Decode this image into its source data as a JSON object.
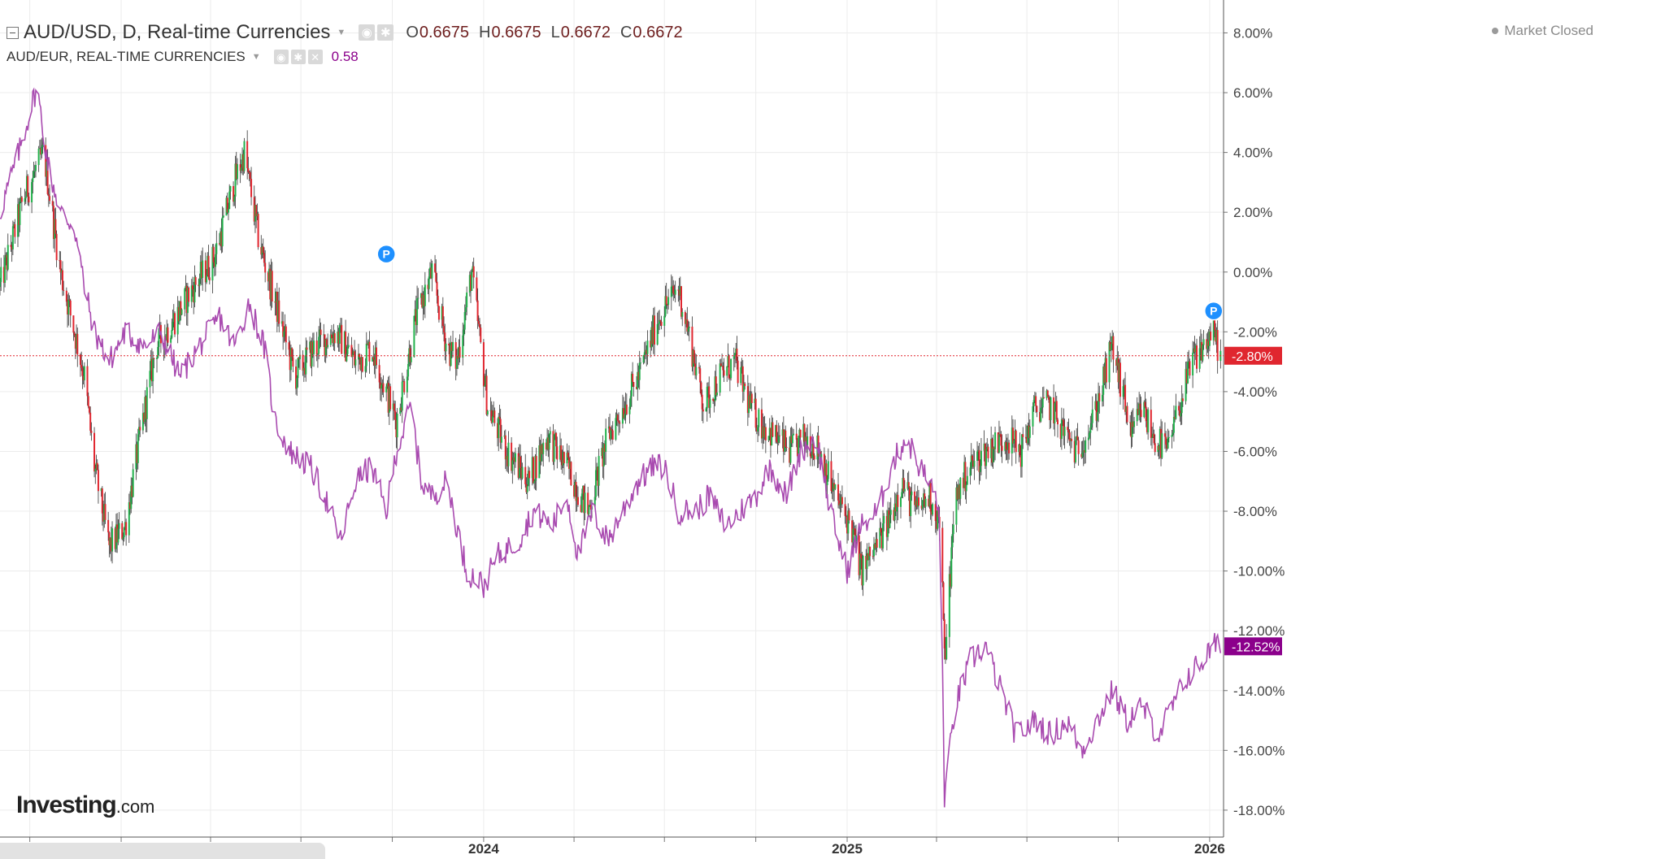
{
  "chart_data": {
    "type": "line",
    "title": "AUD/USD, D, Real-time Currencies",
    "x_ticks": [
      "2024",
      "2025",
      "2026"
    ],
    "x_range": [
      "2022-09-01",
      "2026-01-15"
    ],
    "y_range": [
      -18.9,
      9.1
    ],
    "y_ticks": [
      "8.00%",
      "6.00%",
      "4.00%",
      "2.00%",
      "0.00%",
      "-2.00%",
      "-4.00%",
      "-6.00%",
      "-8.00%",
      "-10.00%",
      "-12.00%",
      "-14.00%",
      "-16.00%",
      "-18.00%"
    ],
    "y_unit": "%",
    "grid": true,
    "series": [
      {
        "name": "AUD/USD, D, Real-time Currencies",
        "style": "candlestick",
        "color_up": "#22b14c",
        "color_down": "#e0262f",
        "last_value_label": "-2.80%",
        "label_color": "#e0262f",
        "points": [
          {
            "x": "2022-09-01",
            "y": -0.5
          },
          {
            "x": "2022-09-25",
            "y": 2.5
          },
          {
            "x": "2022-10-15",
            "y": 4.0
          },
          {
            "x": "2022-11-01",
            "y": 0.0
          },
          {
            "x": "2022-11-15",
            "y": -2.0
          },
          {
            "x": "2022-11-25",
            "y": -3.5
          },
          {
            "x": "2022-12-05",
            "y": -6.5
          },
          {
            "x": "2022-12-20",
            "y": -9.2
          },
          {
            "x": "2023-01-05",
            "y": -8.5
          },
          {
            "x": "2023-01-20",
            "y": -5.5
          },
          {
            "x": "2023-02-05",
            "y": -2.5
          },
          {
            "x": "2023-02-25",
            "y": -1.5
          },
          {
            "x": "2023-03-15",
            "y": -0.5
          },
          {
            "x": "2023-04-05",
            "y": 0.5
          },
          {
            "x": "2023-04-25",
            "y": 3.0
          },
          {
            "x": "2023-05-05",
            "y": 4.0
          },
          {
            "x": "2023-05-20",
            "y": 1.0
          },
          {
            "x": "2023-06-05",
            "y": -1.0
          },
          {
            "x": "2023-06-25",
            "y": -3.5
          },
          {
            "x": "2023-07-15",
            "y": -2.5
          },
          {
            "x": "2023-08-05",
            "y": -2.0
          },
          {
            "x": "2023-08-25",
            "y": -3.0
          },
          {
            "x": "2023-09-10",
            "y": -2.5
          },
          {
            "x": "2023-10-05",
            "y": -5.0
          },
          {
            "x": "2023-10-25",
            "y": -1.5
          },
          {
            "x": "2023-11-10",
            "y": 0.0
          },
          {
            "x": "2023-11-25",
            "y": -2.5
          },
          {
            "x": "2023-12-05",
            "y": -3.0
          },
          {
            "x": "2023-12-20",
            "y": 0.0
          },
          {
            "x": "2024-01-05",
            "y": -4.5
          },
          {
            "x": "2024-01-25",
            "y": -6.0
          },
          {
            "x": "2024-02-15",
            "y": -7.0
          },
          {
            "x": "2024-03-05",
            "y": -5.5
          },
          {
            "x": "2024-03-25",
            "y": -6.5
          },
          {
            "x": "2024-04-15",
            "y": -8.0
          },
          {
            "x": "2024-05-05",
            "y": -5.5
          },
          {
            "x": "2024-06-05",
            "y": -3.5
          },
          {
            "x": "2024-06-25",
            "y": -1.5
          },
          {
            "x": "2024-07-15",
            "y": -0.5
          },
          {
            "x": "2024-07-25",
            "y": -2.0
          },
          {
            "x": "2024-08-10",
            "y": -4.5
          },
          {
            "x": "2024-08-25",
            "y": -3.5
          },
          {
            "x": "2024-09-10",
            "y": -3.0
          },
          {
            "x": "2024-09-25",
            "y": -4.5
          },
          {
            "x": "2024-10-05",
            "y": -5.0
          },
          {
            "x": "2024-10-20",
            "y": -5.5
          },
          {
            "x": "2024-11-05",
            "y": -6.0
          },
          {
            "x": "2024-11-20",
            "y": -5.5
          },
          {
            "x": "2024-12-05",
            "y": -6.0
          },
          {
            "x": "2024-12-20",
            "y": -7.5
          },
          {
            "x": "2025-01-05",
            "y": -8.5
          },
          {
            "x": "2025-01-15",
            "y": -10.0
          },
          {
            "x": "2025-01-25",
            "y": -9.5
          },
          {
            "x": "2025-02-10",
            "y": -8.5
          },
          {
            "x": "2025-02-25",
            "y": -7.0
          },
          {
            "x": "2025-03-10",
            "y": -8.0
          },
          {
            "x": "2025-03-25",
            "y": -7.5
          },
          {
            "x": "2025-04-05",
            "y": -8.5
          },
          {
            "x": "2025-04-09",
            "y": -13.0
          },
          {
            "x": "2025-04-20",
            "y": -7.5
          },
          {
            "x": "2025-05-05",
            "y": -6.5
          },
          {
            "x": "2025-05-20",
            "y": -6.0
          },
          {
            "x": "2025-06-10",
            "y": -5.5
          },
          {
            "x": "2025-06-25",
            "y": -6.0
          },
          {
            "x": "2025-07-10",
            "y": -4.5
          },
          {
            "x": "2025-07-25",
            "y": -4.5
          },
          {
            "x": "2025-08-10",
            "y": -5.5
          },
          {
            "x": "2025-08-20",
            "y": -6.0
          },
          {
            "x": "2025-09-05",
            "y": -5.0
          },
          {
            "x": "2025-09-15",
            "y": -3.8
          },
          {
            "x": "2025-09-25",
            "y": -2.5
          },
          {
            "x": "2025-10-05",
            "y": -4.0
          },
          {
            "x": "2025-10-15",
            "y": -5.5
          },
          {
            "x": "2025-10-25",
            "y": -4.5
          },
          {
            "x": "2025-11-05",
            "y": -5.5
          },
          {
            "x": "2025-11-20",
            "y": -6.0
          },
          {
            "x": "2025-12-01",
            "y": -4.5
          },
          {
            "x": "2025-12-15",
            "y": -3.0
          },
          {
            "x": "2025-12-25",
            "y": -2.5
          },
          {
            "x": "2026-01-05",
            "y": -2.0
          },
          {
            "x": "2026-01-12",
            "y": -2.8
          }
        ]
      },
      {
        "name": "AUD/EUR, REAL-TIME CURRENCIES",
        "style": "line",
        "color": "#a94bb0",
        "last_value_label": "-12.52%",
        "label_color": "#8b008b",
        "points": [
          {
            "x": "2022-09-01",
            "y": 2.0
          },
          {
            "x": "2022-09-20",
            "y": 4.0
          },
          {
            "x": "2022-10-08",
            "y": 6.2
          },
          {
            "x": "2022-10-20",
            "y": 3.5
          },
          {
            "x": "2022-11-01",
            "y": 2.0
          },
          {
            "x": "2022-11-15",
            "y": 1.5
          },
          {
            "x": "2022-11-25",
            "y": -0.5
          },
          {
            "x": "2022-12-05",
            "y": -2.0
          },
          {
            "x": "2022-12-20",
            "y": -3.0
          },
          {
            "x": "2023-01-05",
            "y": -2.0
          },
          {
            "x": "2023-01-25",
            "y": -2.5
          },
          {
            "x": "2023-02-10",
            "y": -2.0
          },
          {
            "x": "2023-03-01",
            "y": -3.5
          },
          {
            "x": "2023-03-20",
            "y": -2.5
          },
          {
            "x": "2023-04-10",
            "y": -1.5
          },
          {
            "x": "2023-04-25",
            "y": -2.5
          },
          {
            "x": "2023-05-10",
            "y": -1.0
          },
          {
            "x": "2023-05-25",
            "y": -2.5
          },
          {
            "x": "2023-06-05",
            "y": -5.0
          },
          {
            "x": "2023-06-20",
            "y": -6.0
          },
          {
            "x": "2023-07-10",
            "y": -6.5
          },
          {
            "x": "2023-07-25",
            "y": -7.5
          },
          {
            "x": "2023-08-10",
            "y": -9.0
          },
          {
            "x": "2023-08-25",
            "y": -7.0
          },
          {
            "x": "2023-09-10",
            "y": -6.5
          },
          {
            "x": "2023-09-25",
            "y": -8.0
          },
          {
            "x": "2023-10-05",
            "y": -6.0
          },
          {
            "x": "2023-10-20",
            "y": -4.5
          },
          {
            "x": "2023-10-30",
            "y": -7.0
          },
          {
            "x": "2023-11-10",
            "y": -7.5
          },
          {
            "x": "2023-11-25",
            "y": -7.0
          },
          {
            "x": "2023-12-05",
            "y": -8.5
          },
          {
            "x": "2023-12-15",
            "y": -10.0
          },
          {
            "x": "2024-01-01",
            "y": -10.5
          },
          {
            "x": "2024-01-15",
            "y": -9.5
          },
          {
            "x": "2024-02-05",
            "y": -9.0
          },
          {
            "x": "2024-02-20",
            "y": -8.0
          },
          {
            "x": "2024-03-10",
            "y": -8.5
          },
          {
            "x": "2024-03-25",
            "y": -7.5
          },
          {
            "x": "2024-04-05",
            "y": -9.5
          },
          {
            "x": "2024-04-20",
            "y": -8.0
          },
          {
            "x": "2024-05-05",
            "y": -9.0
          },
          {
            "x": "2024-05-20",
            "y": -8.0
          },
          {
            "x": "2024-06-05",
            "y": -7.0
          },
          {
            "x": "2024-06-20",
            "y": -6.5
          },
          {
            "x": "2024-07-01",
            "y": -6.5
          },
          {
            "x": "2024-07-15",
            "y": -8.0
          },
          {
            "x": "2024-08-01",
            "y": -8.0
          },
          {
            "x": "2024-08-15",
            "y": -7.5
          },
          {
            "x": "2024-09-01",
            "y": -8.5
          },
          {
            "x": "2024-09-15",
            "y": -8.0
          },
          {
            "x": "2024-10-01",
            "y": -7.5
          },
          {
            "x": "2024-10-15",
            "y": -6.5
          },
          {
            "x": "2024-11-01",
            "y": -7.5
          },
          {
            "x": "2024-11-15",
            "y": -6.0
          },
          {
            "x": "2024-12-01",
            "y": -5.5
          },
          {
            "x": "2024-12-15",
            "y": -8.0
          },
          {
            "x": "2025-01-01",
            "y": -10.0
          },
          {
            "x": "2025-01-15",
            "y": -8.5
          },
          {
            "x": "2025-02-01",
            "y": -8.0
          },
          {
            "x": "2025-02-15",
            "y": -6.5
          },
          {
            "x": "2025-03-01",
            "y": -5.5
          },
          {
            "x": "2025-03-15",
            "y": -6.5
          },
          {
            "x": "2025-04-01",
            "y": -7.5
          },
          {
            "x": "2025-04-05",
            "y": -9.0
          },
          {
            "x": "2025-04-09",
            "y": -17.5
          },
          {
            "x": "2025-04-20",
            "y": -14.5
          },
          {
            "x": "2025-05-05",
            "y": -13.0
          },
          {
            "x": "2025-05-20",
            "y": -12.5
          },
          {
            "x": "2025-06-05",
            "y": -14.0
          },
          {
            "x": "2025-06-20",
            "y": -15.5
          },
          {
            "x": "2025-07-10",
            "y": -15.0
          },
          {
            "x": "2025-07-25",
            "y": -15.5
          },
          {
            "x": "2025-08-10",
            "y": -15.0
          },
          {
            "x": "2025-08-25",
            "y": -16.0
          },
          {
            "x": "2025-09-10",
            "y": -15.0
          },
          {
            "x": "2025-09-25",
            "y": -14.0
          },
          {
            "x": "2025-10-10",
            "y": -15.0
          },
          {
            "x": "2025-10-25",
            "y": -14.5
          },
          {
            "x": "2025-11-10",
            "y": -15.5
          },
          {
            "x": "2025-11-25",
            "y": -14.5
          },
          {
            "x": "2025-12-10",
            "y": -13.5
          },
          {
            "x": "2025-12-25",
            "y": -13.0
          },
          {
            "x": "2026-01-05",
            "y": -12.5
          },
          {
            "x": "2026-01-12",
            "y": -12.52
          }
        ]
      }
    ],
    "reference_line": {
      "y": -2.8,
      "color": "#e0262f",
      "style": "dotted"
    },
    "event_markers": [
      {
        "label": "P",
        "x": "2023-09-25",
        "y": 0.6,
        "color": "#1e90ff"
      },
      {
        "label": "P",
        "x": "2026-01-05",
        "y": -1.3,
        "color": "#1e90ff"
      }
    ]
  },
  "header": {
    "main_title": "AUD/USD, D, Real-time Currencies",
    "ohlc": {
      "o_key": "O",
      "o_val": "0.6675",
      "h_key": "H",
      "h_val": "0.6675",
      "l_key": "L",
      "l_val": "0.6672",
      "c_key": "C",
      "c_val": "0.6672"
    },
    "sub_title": "AUD/EUR, REAL-TIME CURRENCIES",
    "sub_value": "0.58",
    "status": "Market Closed"
  },
  "logo": {
    "main": "Investing",
    "suffix": ".com"
  },
  "icons": {
    "collapse": "collapse-icon",
    "dropdown": "caret-down-icon",
    "visibility": "eye-icon",
    "settings": "gear-icon",
    "remove": "close-icon"
  }
}
